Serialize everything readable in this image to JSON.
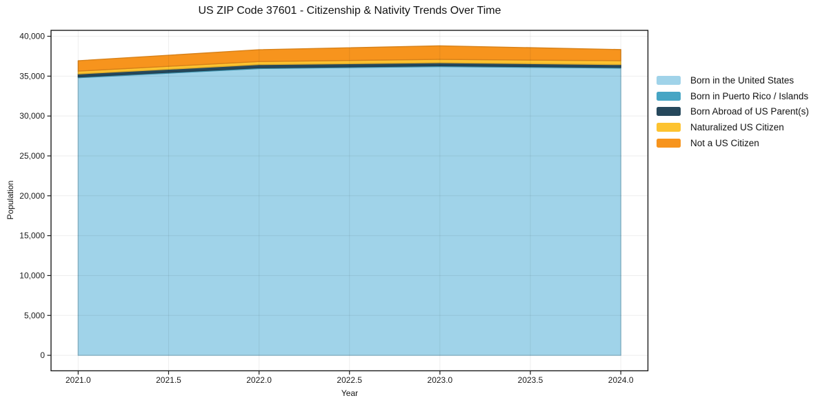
{
  "figure": {
    "title": "US ZIP Code 37601 - Citizenship & Nativity Trends Over Time",
    "xlabel": "Year",
    "ylabel": "Population"
  },
  "chart_data": {
    "type": "area",
    "stacked": true,
    "title": "US ZIP Code 37601 - Citizenship & Nativity Trends Over Time",
    "xlabel": "Year",
    "ylabel": "Population",
    "grid": true,
    "legend_position": "outside right",
    "x": [
      2021,
      2022,
      2023,
      2024
    ],
    "series": [
      {
        "name": "Born in the United States",
        "color": "#a0d3e9",
        "values": [
          34800,
          35950,
          36200,
          36000
        ]
      },
      {
        "name": "Born in Puerto Rico / Islands",
        "color": "#46a5c4",
        "values": [
          100,
          100,
          100,
          100
        ]
      },
      {
        "name": "Born Abroad of US Parent(s)",
        "color": "#26485c",
        "values": [
          380,
          400,
          380,
          350
        ]
      },
      {
        "name": "Naturalized US Citizen",
        "color": "#fdc330",
        "values": [
          350,
          380,
          420,
          480
        ]
      },
      {
        "name": "Not a US Citizen",
        "color": "#f7941d",
        "values": [
          1300,
          1480,
          1700,
          1400
        ]
      }
    ],
    "stacked_totals": [
      36930,
      38310,
      38800,
      38330
    ],
    "xlim": [
      2020.85,
      2024.15
    ],
    "ylim": [
      -1940,
      40740
    ],
    "x_ticks": [
      2021.0,
      2021.5,
      2022.0,
      2022.5,
      2023.0,
      2023.5,
      2024.0
    ],
    "x_tick_labels": [
      "2021.0",
      "2021.5",
      "2022.0",
      "2022.5",
      "2023.0",
      "2023.5",
      "2024.0"
    ],
    "y_ticks": [
      0,
      5000,
      10000,
      15000,
      20000,
      25000,
      30000,
      35000,
      40000
    ],
    "y_tick_labels": [
      "0",
      "5,000",
      "10,000",
      "15,000",
      "20,000",
      "25,000",
      "30,000",
      "35,000",
      "40,000"
    ]
  },
  "colors": {
    "spine": "#1a1a1a",
    "tick_text": "#1a1a1a",
    "gridline": "rgba(0,0,0,0.07)",
    "background": "#ffffff"
  }
}
